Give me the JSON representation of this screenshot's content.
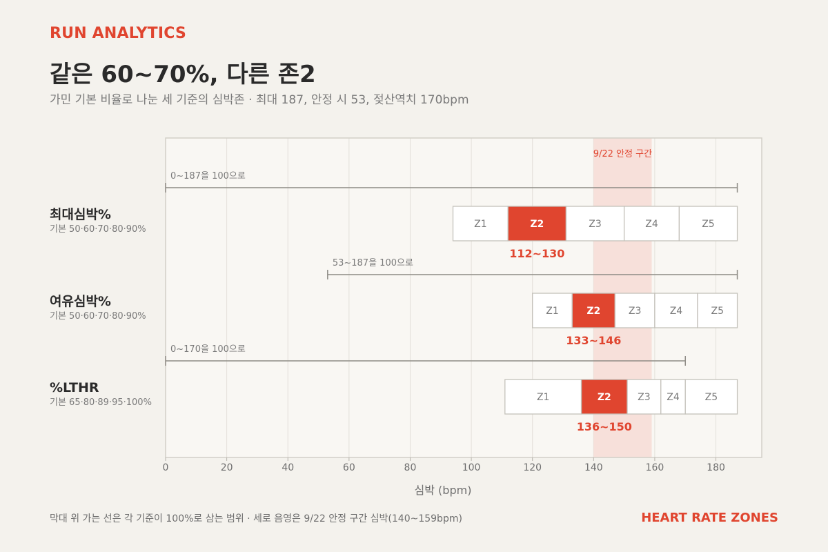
{
  "header": {
    "kicker": "RUN ANALYTICS",
    "title": "같은 60~70%, 다른 존2",
    "subtitle": "가민 기본 비율로 나눈 세 기준의 심박존 · 최대 187, 안정 시 53, 젖산역치 170bpm"
  },
  "footer": {
    "note": "막대 위 가는 선은 각 기준이 100%로 삼는 범위 · 세로 음영은 9/22 안정 구간 심박(140~159bpm)",
    "brand": "HEART RATE ZONES"
  },
  "colors": {
    "accent": "#e0452f",
    "band": "#f7dcd5",
    "zone_fill": "#ffffff",
    "zone_border": "#c4c1ba",
    "plot_bg": "#f9f7f3",
    "grid": "#e3e0d9",
    "axis_text": "#6e6e6e"
  },
  "chart_data": {
    "type": "range_bar",
    "xlabel": "심박 (bpm)",
    "xlim": [
      0,
      195
    ],
    "xticks": [
      0,
      20,
      40,
      60,
      80,
      100,
      120,
      140,
      160,
      180
    ],
    "band": {
      "label": "9/22 안정 구간",
      "from": 140,
      "to": 159
    },
    "rows": [
      {
        "name": "최대심박%",
        "sub": "기본 50·60·70·80·90%",
        "ref_label": "0~187을 100으로",
        "ref_range": [
          0,
          187
        ],
        "zones": [
          {
            "label": "Z1",
            "from": 94,
            "to": 112
          },
          {
            "label": "Z2",
            "from": 112,
            "to": 131
          },
          {
            "label": "Z3",
            "from": 131,
            "to": 150
          },
          {
            "label": "Z4",
            "from": 150,
            "to": 168
          },
          {
            "label": "Z5",
            "from": 168,
            "to": 187
          }
        ],
        "highlight": "Z2",
        "range_label": "112~130"
      },
      {
        "name": "여유심박%",
        "sub": "기본 50·60·70·80·90%",
        "ref_label": "53~187을 100으로",
        "ref_range": [
          53,
          187
        ],
        "zones": [
          {
            "label": "Z1",
            "from": 120,
            "to": 133
          },
          {
            "label": "Z2",
            "from": 133,
            "to": 147
          },
          {
            "label": "Z3",
            "from": 147,
            "to": 160
          },
          {
            "label": "Z4",
            "from": 160,
            "to": 174
          },
          {
            "label": "Z5",
            "from": 174,
            "to": 187
          }
        ],
        "highlight": "Z2",
        "range_label": "133~146"
      },
      {
        "name": "%LTHR",
        "sub": "기본 65·80·89·95·100%",
        "ref_label": "0~170을 100으로",
        "ref_range": [
          0,
          170
        ],
        "zones": [
          {
            "label": "Z1",
            "from": 111,
            "to": 136
          },
          {
            "label": "Z2",
            "from": 136,
            "to": 151
          },
          {
            "label": "Z3",
            "from": 151,
            "to": 162
          },
          {
            "label": "Z4",
            "from": 162,
            "to": 170
          },
          {
            "label": "Z5",
            "from": 170,
            "to": 187
          }
        ],
        "highlight": "Z2",
        "range_label": "136~150"
      }
    ]
  }
}
